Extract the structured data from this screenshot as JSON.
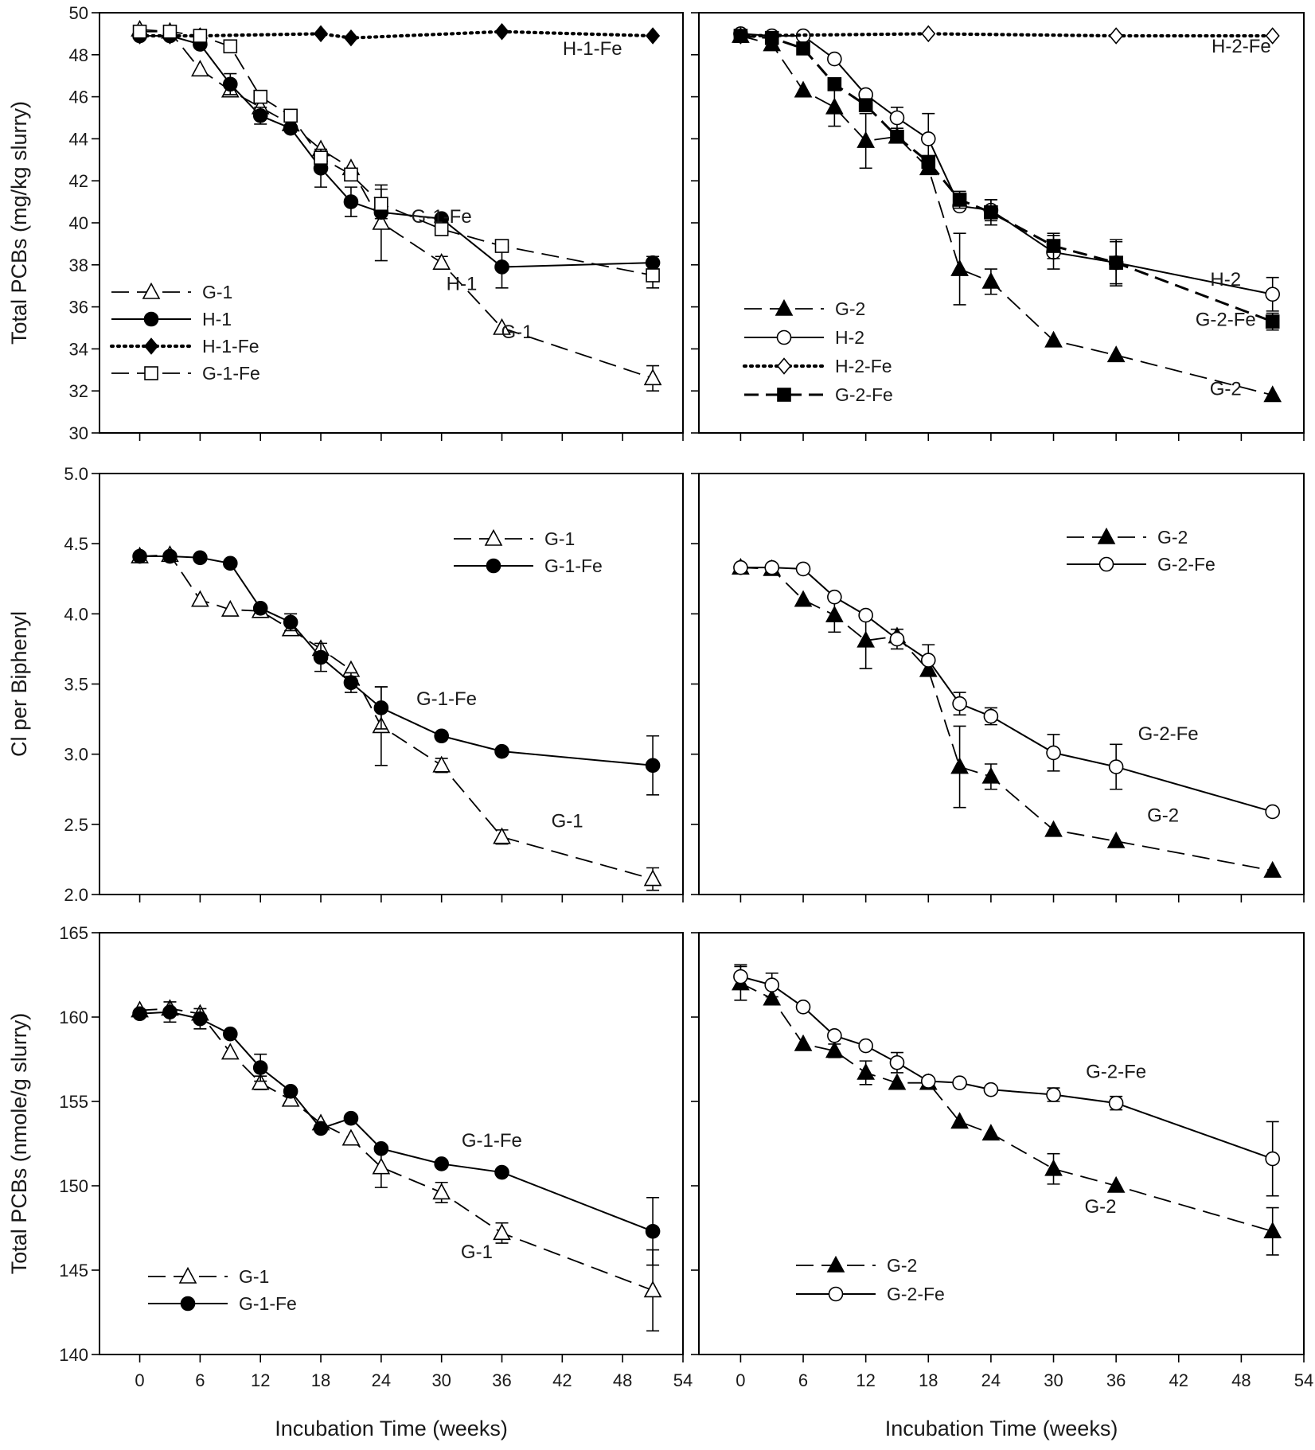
{
  "x_axis": {
    "label": "Incubation Time (weeks)",
    "range": [
      -4,
      54
    ],
    "ticks": [
      "0",
      "6",
      "12",
      "18",
      "24",
      "30",
      "36",
      "42",
      "48",
      "54"
    ]
  },
  "chart_data": [
    {
      "type": "line",
      "panel": "top-left",
      "ylabel": "Total PCBs (mg/kg slurry)",
      "ylim": [
        30,
        50
      ],
      "yticks": [
        "30",
        "32",
        "34",
        "36",
        "38",
        "40",
        "42",
        "44",
        "46",
        "48",
        "50"
      ],
      "series": [
        {
          "name": "G-1",
          "style": "dashed",
          "marker": "triangle",
          "filled": false,
          "x": [
            0,
            3,
            6,
            9,
            12,
            15,
            18,
            21,
            24,
            30,
            36,
            51
          ],
          "y": [
            49.2,
            49.1,
            47.3,
            46.3,
            45.5,
            44.7,
            43.5,
            42.6,
            40.0,
            38.1,
            35.0,
            32.6
          ],
          "err": [
            0,
            0,
            0,
            0,
            0,
            0,
            0,
            0,
            1.8,
            0.3,
            0,
            0.6
          ]
        },
        {
          "name": "H-1",
          "style": "solid",
          "marker": "circle",
          "filled": true,
          "x": [
            0,
            3,
            6,
            9,
            12,
            15,
            18,
            21,
            24,
            30,
            36,
            51
          ],
          "y": [
            48.9,
            48.9,
            48.5,
            46.6,
            45.1,
            44.5,
            42.6,
            41.0,
            40.5,
            40.2,
            37.9,
            38.1
          ],
          "err": [
            0,
            0,
            0,
            0.5,
            0.4,
            0,
            0.9,
            0.7,
            0,
            0,
            1.0,
            0.3
          ]
        },
        {
          "name": "H-1-Fe",
          "style": "dotted",
          "marker": "diamond",
          "filled": true,
          "x": [
            0,
            3,
            6,
            18,
            21,
            36,
            51
          ],
          "y": [
            48.9,
            48.9,
            48.9,
            49.0,
            48.8,
            49.1,
            48.9
          ],
          "err": [
            0,
            0,
            0,
            0,
            0,
            0,
            0
          ]
        },
        {
          "name": "G-1-Fe",
          "style": "dashed",
          "marker": "square",
          "filled": false,
          "x": [
            0,
            3,
            6,
            9,
            12,
            15,
            18,
            21,
            24,
            30,
            36,
            51
          ],
          "y": [
            49.1,
            49.1,
            48.9,
            48.4,
            46.0,
            45.1,
            43.1,
            42.3,
            40.9,
            39.7,
            38.9,
            37.5
          ],
          "err": [
            0,
            0,
            0,
            0,
            0,
            0,
            0,
            0,
            0.7,
            0,
            0,
            0.6
          ]
        }
      ],
      "annotations": [
        {
          "text": "H-1-Fe",
          "x": 45,
          "y": 48.0
        },
        {
          "text": "G-1-Fe",
          "x": 30,
          "y": 40.0
        },
        {
          "text": "H-1",
          "x": 32,
          "y": 36.8
        },
        {
          "text": "G-1",
          "x": 37.5,
          "y": 34.5
        }
      ],
      "legend": {
        "position": "bottom-left",
        "entries": [
          "G-1",
          "H-1",
          "H-1-Fe",
          "G-1-Fe"
        ]
      }
    },
    {
      "type": "line",
      "panel": "top-right",
      "ylabel": "",
      "ylim": [
        30,
        50
      ],
      "yticks": [],
      "series": [
        {
          "name": "G-2",
          "style": "dashed",
          "marker": "triangle",
          "filled": true,
          "x": [
            0,
            3,
            6,
            9,
            12,
            15,
            18,
            21,
            24,
            30,
            36,
            51
          ],
          "y": [
            48.9,
            48.5,
            46.3,
            45.5,
            43.9,
            44.1,
            42.6,
            37.8,
            37.2,
            34.4,
            33.7,
            31.8
          ],
          "err": [
            0,
            0,
            0,
            0.9,
            1.3,
            0,
            0,
            1.7,
            0.6,
            0,
            0,
            0
          ]
        },
        {
          "name": "H-2",
          "style": "solid",
          "marker": "circle",
          "filled": false,
          "x": [
            0,
            3,
            6,
            9,
            12,
            15,
            18,
            21,
            24,
            30,
            36,
            51
          ],
          "y": [
            49.0,
            48.9,
            48.9,
            47.8,
            46.1,
            45.0,
            44.0,
            40.8,
            40.6,
            38.6,
            38.1,
            36.6
          ],
          "err": [
            0,
            0,
            0,
            0,
            0,
            0.5,
            1.2,
            0,
            0.5,
            0.8,
            1.0,
            0.8
          ]
        },
        {
          "name": "H-2-Fe",
          "style": "dotted",
          "marker": "diamond",
          "filled": false,
          "x": [
            0,
            18,
            36,
            51
          ],
          "y": [
            48.9,
            49.0,
            48.9,
            48.9
          ],
          "err": [
            0,
            0,
            0,
            0
          ]
        },
        {
          "name": "G-2-Fe",
          "style": "dashed-bold",
          "marker": "square",
          "filled": true,
          "x": [
            0,
            3,
            6,
            9,
            12,
            15,
            18,
            21,
            24,
            30,
            36,
            51
          ],
          "y": [
            48.9,
            48.8,
            48.3,
            46.6,
            45.6,
            44.1,
            42.9,
            41.1,
            40.5,
            38.9,
            38.1,
            35.3
          ],
          "err": [
            0,
            0,
            0,
            0,
            0,
            0,
            0,
            0.4,
            0.6,
            0.6,
            1.1,
            0.4
          ]
        }
      ],
      "annotations": [
        {
          "text": "H-2-Fe",
          "x": 48,
          "y": 48.1
        },
        {
          "text": "H-2",
          "x": 46.5,
          "y": 37.0
        },
        {
          "text": "G-2-Fe",
          "x": 46.5,
          "y": 35.1
        },
        {
          "text": "G-2",
          "x": 46.5,
          "y": 31.8
        }
      ],
      "legend": {
        "position": "bottom-left",
        "entries": [
          "G-2",
          "H-2",
          "H-2-Fe",
          "G-2-Fe"
        ]
      }
    },
    {
      "type": "line",
      "panel": "middle-left",
      "ylabel": "Cl per Biphenyl",
      "ylim": [
        2.0,
        5.0
      ],
      "yticks": [
        "2.0",
        "2.5",
        "3.0",
        "3.5",
        "4.0",
        "4.5",
        "5.0"
      ],
      "series": [
        {
          "name": "G-1",
          "style": "dashed",
          "marker": "triangle",
          "filled": false,
          "x": [
            0,
            3,
            6,
            9,
            12,
            15,
            18,
            21,
            24,
            30,
            36,
            51
          ],
          "y": [
            4.41,
            4.42,
            4.1,
            4.03,
            4.02,
            3.89,
            3.75,
            3.6,
            3.2,
            2.92,
            2.41,
            2.11
          ],
          "err": [
            0,
            0,
            0,
            0,
            0,
            0,
            0,
            0,
            0.28,
            0.05,
            0.05,
            0.08
          ]
        },
        {
          "name": "G-1-Fe",
          "style": "solid",
          "marker": "circle",
          "filled": true,
          "x": [
            0,
            3,
            6,
            9,
            12,
            15,
            18,
            21,
            24,
            30,
            36,
            51
          ],
          "y": [
            4.41,
            4.41,
            4.4,
            4.36,
            4.04,
            3.94,
            3.69,
            3.51,
            3.33,
            3.13,
            3.02,
            2.92
          ],
          "err": [
            0,
            0,
            0,
            0,
            0,
            0.06,
            0.1,
            0.07,
            0.15,
            0,
            0,
            0.21
          ]
        }
      ],
      "annotations": [
        {
          "text": "G-1-Fe",
          "x": 30.5,
          "y": 3.35
        },
        {
          "text": "G-1",
          "x": 42.5,
          "y": 2.48
        }
      ],
      "legend": {
        "position": "top-right",
        "entries": [
          "G-1",
          "G-1-Fe"
        ]
      }
    },
    {
      "type": "line",
      "panel": "middle-right",
      "ylabel": "",
      "ylim": [
        2.0,
        5.0
      ],
      "yticks": [],
      "series": [
        {
          "name": "G-2",
          "style": "dashed",
          "marker": "triangle",
          "filled": true,
          "x": [
            0,
            3,
            6,
            9,
            12,
            15,
            18,
            21,
            24,
            30,
            36,
            51
          ],
          "y": [
            4.33,
            4.32,
            4.1,
            3.99,
            3.81,
            3.84,
            3.6,
            2.91,
            2.84,
            2.46,
            2.38,
            2.17
          ],
          "err": [
            0,
            0,
            0,
            0.12,
            0.2,
            0,
            0,
            0.29,
            0.09,
            0,
            0,
            0
          ]
        },
        {
          "name": "G-2-Fe",
          "style": "solid",
          "marker": "circle",
          "filled": false,
          "x": [
            0,
            3,
            6,
            9,
            12,
            15,
            18,
            21,
            24,
            30,
            36,
            51
          ],
          "y": [
            4.33,
            4.33,
            4.32,
            4.12,
            3.99,
            3.82,
            3.67,
            3.36,
            3.27,
            3.01,
            2.91,
            2.59
          ],
          "err": [
            0,
            0,
            0,
            0,
            0,
            0.07,
            0.11,
            0.08,
            0.06,
            0.13,
            0.16,
            0
          ]
        }
      ],
      "annotations": [
        {
          "text": "G-2-Fe",
          "x": 41,
          "y": 3.1
        },
        {
          "text": "G-2",
          "x": 40.5,
          "y": 2.52
        }
      ],
      "legend": {
        "position": "top-right",
        "entries": [
          "G-2",
          "G-2-Fe"
        ]
      }
    },
    {
      "type": "line",
      "panel": "bottom-left",
      "ylabel": "Total PCBs (nmole/g slurry)",
      "ylim": [
        140,
        165
      ],
      "yticks": [
        "140",
        "145",
        "150",
        "155",
        "160",
        "165"
      ],
      "series": [
        {
          "name": "G-1",
          "style": "dashed",
          "marker": "triangle",
          "filled": false,
          "x": [
            0,
            3,
            6,
            9,
            12,
            15,
            18,
            21,
            24,
            30,
            36,
            51
          ],
          "y": [
            160.4,
            160.5,
            160.2,
            157.9,
            156.1,
            155.1,
            153.7,
            152.8,
            151.1,
            149.6,
            147.2,
            143.8
          ],
          "err": [
            0,
            0,
            0,
            0,
            0.4,
            0,
            0,
            0,
            1.2,
            0.6,
            0.6,
            2.4
          ]
        },
        {
          "name": "G-1-Fe",
          "style": "solid",
          "marker": "circle",
          "filled": true,
          "x": [
            0,
            3,
            6,
            9,
            12,
            15,
            18,
            21,
            24,
            30,
            36,
            51
          ],
          "y": [
            160.2,
            160.3,
            159.9,
            159.0,
            157.0,
            155.6,
            153.4,
            154.0,
            152.2,
            151.3,
            150.8,
            147.3
          ],
          "err": [
            0,
            0.6,
            0.6,
            0,
            0.8,
            0,
            0,
            0,
            0,
            0,
            0,
            2.0
          ]
        }
      ],
      "annotations": [
        {
          "text": "G-1-Fe",
          "x": 35,
          "y": 152.3
        },
        {
          "text": "G-1",
          "x": 33.5,
          "y": 145.7
        }
      ],
      "legend": {
        "position": "bottom-left",
        "entries": [
          "G-1",
          "G-1-Fe"
        ]
      }
    },
    {
      "type": "line",
      "panel": "bottom-right",
      "ylabel": "",
      "ylim": [
        140,
        165
      ],
      "yticks": [],
      "series": [
        {
          "name": "G-2",
          "style": "dashed",
          "marker": "triangle",
          "filled": true,
          "x": [
            0,
            3,
            6,
            9,
            12,
            15,
            18,
            21,
            24,
            30,
            36,
            51
          ],
          "y": [
            162.0,
            161.1,
            158.4,
            158.0,
            156.7,
            156.1,
            156.1,
            153.8,
            153.1,
            151.0,
            150.0,
            147.3
          ],
          "err": [
            1.0,
            0,
            0,
            0.4,
            0.7,
            0,
            0,
            0,
            0,
            0.9,
            0,
            1.4
          ]
        },
        {
          "name": "G-2-Fe",
          "style": "solid",
          "marker": "circle",
          "filled": false,
          "x": [
            0,
            3,
            6,
            9,
            12,
            15,
            18,
            21,
            24,
            30,
            36,
            51
          ],
          "y": [
            162.4,
            161.9,
            160.6,
            158.9,
            158.3,
            157.3,
            156.2,
            156.1,
            155.7,
            155.4,
            154.9,
            151.6
          ],
          "err": [
            0.7,
            0.7,
            0,
            0,
            0,
            0.6,
            0,
            0,
            0,
            0.4,
            0.4,
            2.2
          ]
        }
      ],
      "annotations": [
        {
          "text": "G-2-Fe",
          "x": 36,
          "y": 156.4
        },
        {
          "text": "G-2",
          "x": 34.5,
          "y": 148.4
        }
      ],
      "legend": {
        "position": "bottom-left",
        "entries": [
          "G-2",
          "G-2-Fe"
        ]
      }
    }
  ]
}
